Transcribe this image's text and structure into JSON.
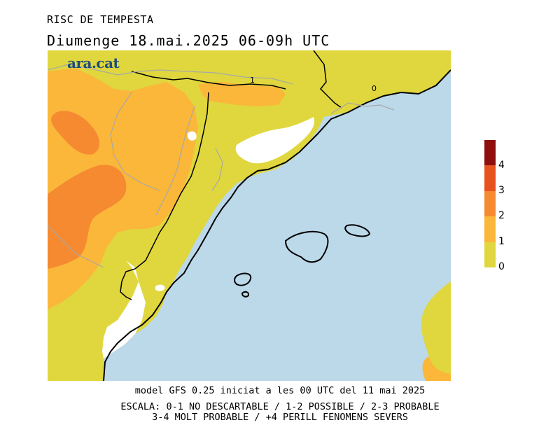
{
  "header": {
    "title": "RISC DE TEMPESTA",
    "subtitle": "Diumenge  18.mai.2025 06-09h UTC"
  },
  "logo": {
    "text": "ara.cat"
  },
  "map": {
    "contour_labels": [
      "1",
      "0"
    ],
    "risk_colors": {
      "sea": "#bcd9ea",
      "land_no_data": "#ffffff",
      "level_0_1": "#dfd73d",
      "level_1_2": "#fbb73a",
      "level_2_3": "#f58a30",
      "level_3_4": "#e6531f",
      "level_4_plus": "#8f0f0f"
    }
  },
  "legend": {
    "labels": [
      "0",
      "1",
      "2",
      "3",
      "4"
    ],
    "colors": [
      "#dfd73d",
      "#fbb73a",
      "#f58a30",
      "#e6531f",
      "#8f0f0f"
    ]
  },
  "footer": {
    "line1": "model GFS 0.25 iniciat a les 00 UTC del 11 mai 2025",
    "line2": "ESCALA: 0-1 NO DESCARTABLE / 1-2 POSSIBLE / 2-3 PROBABLE",
    "line3": "3-4 MOLT PROBABLE / +4 PERILL FENOMENS SEVERS"
  }
}
